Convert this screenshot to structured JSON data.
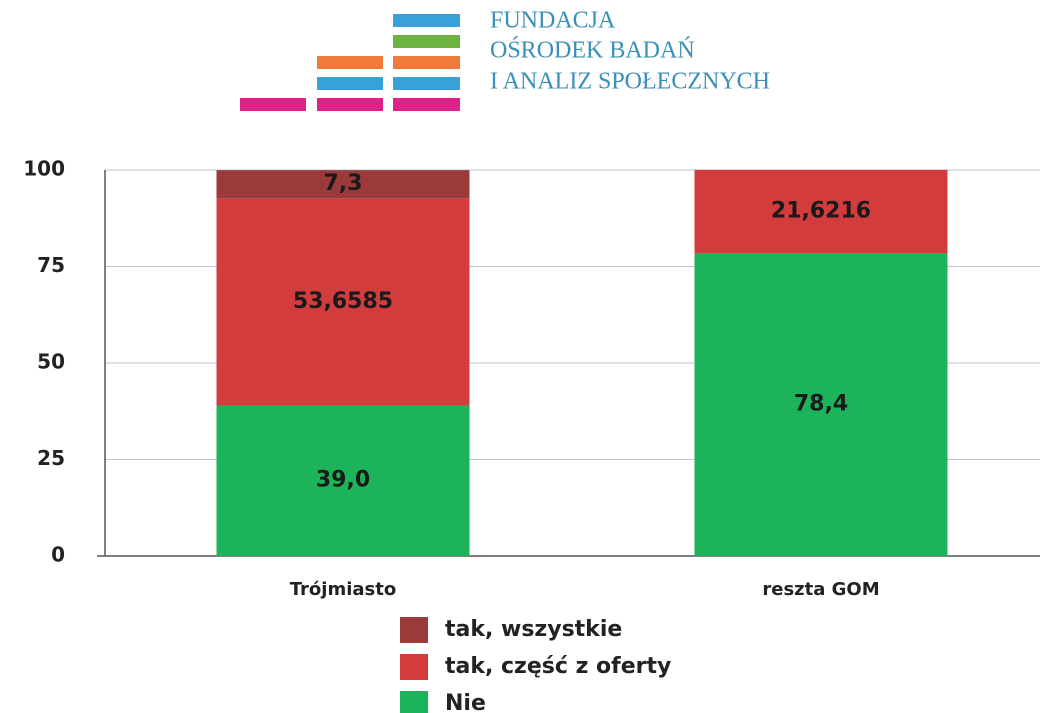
{
  "logo": {
    "lines": [
      "FUNDACJA",
      "OŚRODEK BADAŃ",
      "I ANALIZ SPOŁECZNYCH"
    ]
  },
  "chart_data": {
    "type": "stacked_bar",
    "categories": [
      "Trójmiasto",
      "reszta GOM"
    ],
    "series": [
      {
        "name": "Nie",
        "color": "#1db35a",
        "values": [
          39.0,
          78.4
        ],
        "value_labels": [
          "39,0",
          "78,4"
        ]
      },
      {
        "name": "tak, część z oferty",
        "color": "#d23c3c",
        "values": [
          53.6585,
          21.6216
        ],
        "value_labels": [
          "53,6585",
          "21,6216"
        ]
      },
      {
        "name": "tak, wszystkie",
        "color": "#9b3a3a",
        "values": [
          7.3,
          null
        ],
        "value_labels": [
          "7,3",
          null
        ]
      }
    ],
    "ylim": [
      0,
      100
    ],
    "yticks": [
      0,
      25,
      50,
      75,
      100
    ],
    "grid": true,
    "legend": "bottom"
  }
}
